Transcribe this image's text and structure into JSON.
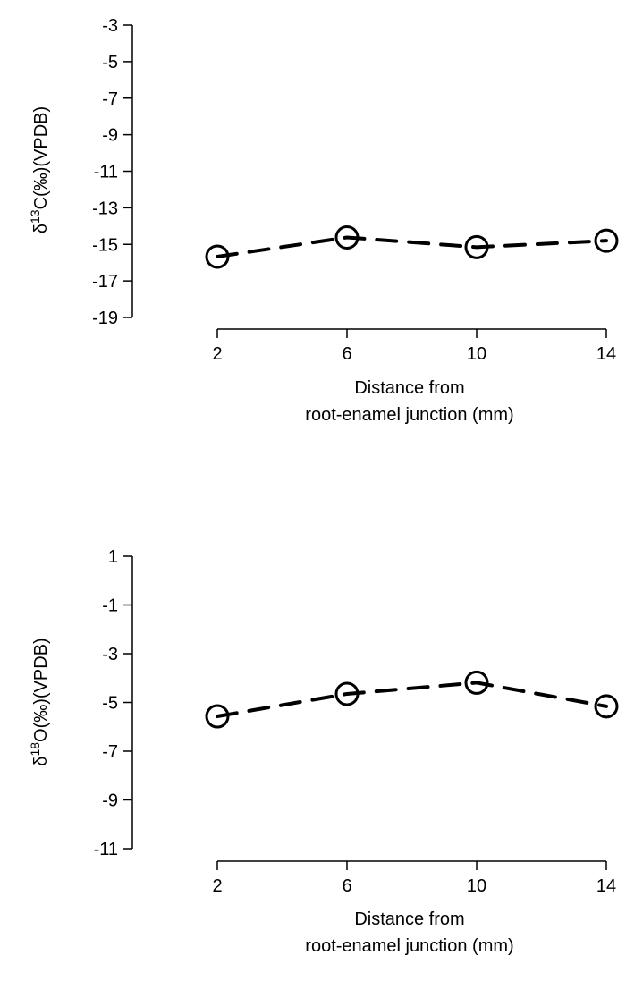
{
  "chart_data": [
    {
      "type": "line",
      "title": "",
      "xlabel": [
        "Distance from",
        "root-enamel junction (mm)"
      ],
      "ylabel": {
        "prefix": "δ",
        "sup": "13",
        "rest": "C(‰)(VPDB)"
      },
      "x": [
        2,
        6,
        10,
        14
      ],
      "y": [
        -15.67,
        -14.62,
        -15.15,
        -14.8
      ],
      "xticks": [
        "2",
        "6",
        "10",
        "14"
      ],
      "xtick_values": [
        2,
        6,
        10,
        14
      ],
      "yticks": [
        "-3",
        "-5",
        "-7",
        "-9",
        "-11",
        "-13",
        "-15",
        "-17",
        "-19"
      ],
      "ytick_values": [
        -3,
        -5,
        -7,
        -9,
        -11,
        -13,
        -15,
        -17,
        -19
      ],
      "ylim": [
        -19,
        -3
      ],
      "xlim": [
        2,
        14
      ],
      "line_style": "dashed",
      "marker": "open-circle",
      "grid": false
    },
    {
      "type": "line",
      "title": "",
      "xlabel": [
        "Distance from",
        "root-enamel junction (mm)"
      ],
      "ylabel": {
        "prefix": "δ",
        "sup": "18",
        "rest": "O(‰)(VPDB)"
      },
      "x": [
        2,
        6,
        10,
        14
      ],
      "y": [
        -5.57,
        -4.65,
        -4.19,
        -5.16
      ],
      "xticks": [
        "2",
        "6",
        "10",
        "14"
      ],
      "xtick_values": [
        2,
        6,
        10,
        14
      ],
      "yticks": [
        "1",
        "-1",
        "-3",
        "-5",
        "-7",
        "-9",
        "-11"
      ],
      "ytick_values": [
        1,
        -1,
        -3,
        -5,
        -7,
        -9,
        -11
      ],
      "ylim": [
        -11,
        1
      ],
      "xlim": [
        2,
        14
      ],
      "line_style": "dashed",
      "marker": "open-circle",
      "grid": false
    }
  ]
}
